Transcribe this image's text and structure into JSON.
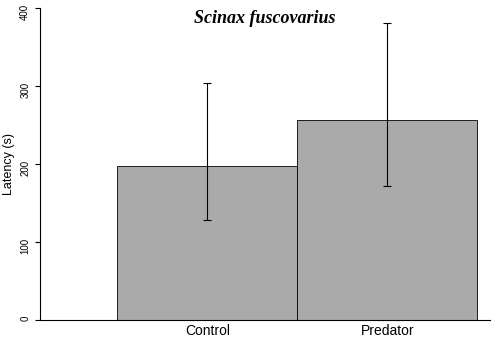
{
  "chart_data": {
    "type": "bar",
    "title": "Scinax fuscovarius",
    "categories": [
      "Control",
      "Predator"
    ],
    "values": [
      197,
      256
    ],
    "error_lower": [
      128,
      172
    ],
    "error_upper": [
      304,
      381
    ],
    "y_label": "Latency (s)",
    "color": "#aaaaaa",
    "ylim": [
      0,
      400
    ],
    "yticks": [
      0,
      100,
      200,
      300,
      400
    ],
    "grid": false
  }
}
